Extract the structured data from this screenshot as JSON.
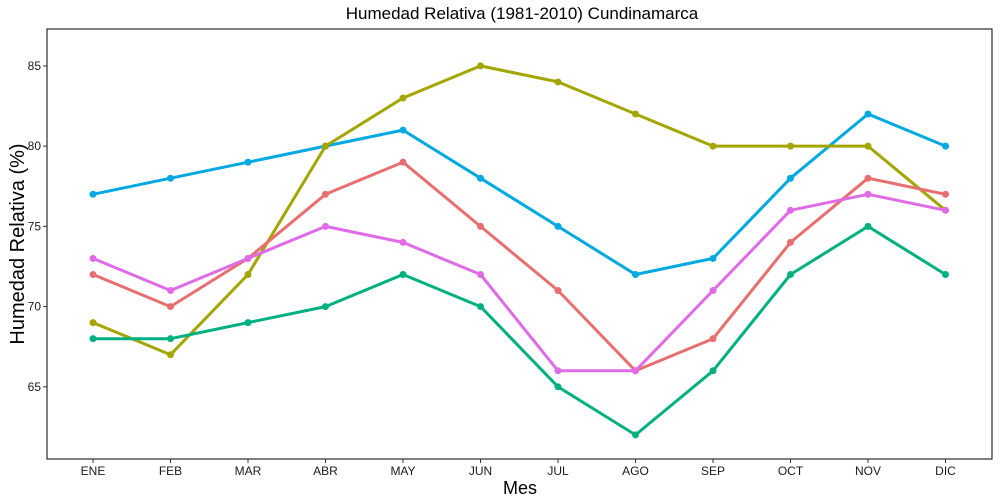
{
  "chart_data": {
    "type": "line",
    "title": "Humedad Relativa (1981-2010)  Cundinamarca",
    "xlabel": "Mes",
    "ylabel": "Humedad Relativa   (%)",
    "categories": [
      "ENE",
      "FEB",
      "MAR",
      "ABR",
      "MAY",
      "JUN",
      "JUL",
      "AGO",
      "SEP",
      "OCT",
      "NOV",
      "DIC"
    ],
    "ylim": [
      60.5,
      87.3
    ],
    "yticks": [
      65,
      70,
      75,
      80,
      85
    ],
    "grid": false,
    "legend": "none",
    "series": [
      {
        "color": "#00A9E0",
        "values": [
          77,
          78,
          79,
          80,
          81,
          78,
          75,
          72,
          73,
          78,
          82,
          80
        ]
      },
      {
        "color": "#A3A500",
        "values": [
          69,
          67,
          72,
          80,
          83,
          85,
          84,
          82,
          80,
          80,
          80,
          76
        ]
      },
      {
        "color": "#E76F6F",
        "values": [
          72,
          70,
          73,
          77,
          79,
          75,
          71,
          66,
          68,
          74,
          78,
          77
        ]
      },
      {
        "color": "#E06BE6",
        "values": [
          73,
          71,
          73,
          75,
          74,
          72,
          66,
          66,
          71,
          76,
          77,
          76
        ]
      },
      {
        "color": "#00B081",
        "values": [
          68,
          68,
          69,
          70,
          72,
          70,
          65,
          62,
          66,
          72,
          75,
          72
        ]
      }
    ]
  }
}
